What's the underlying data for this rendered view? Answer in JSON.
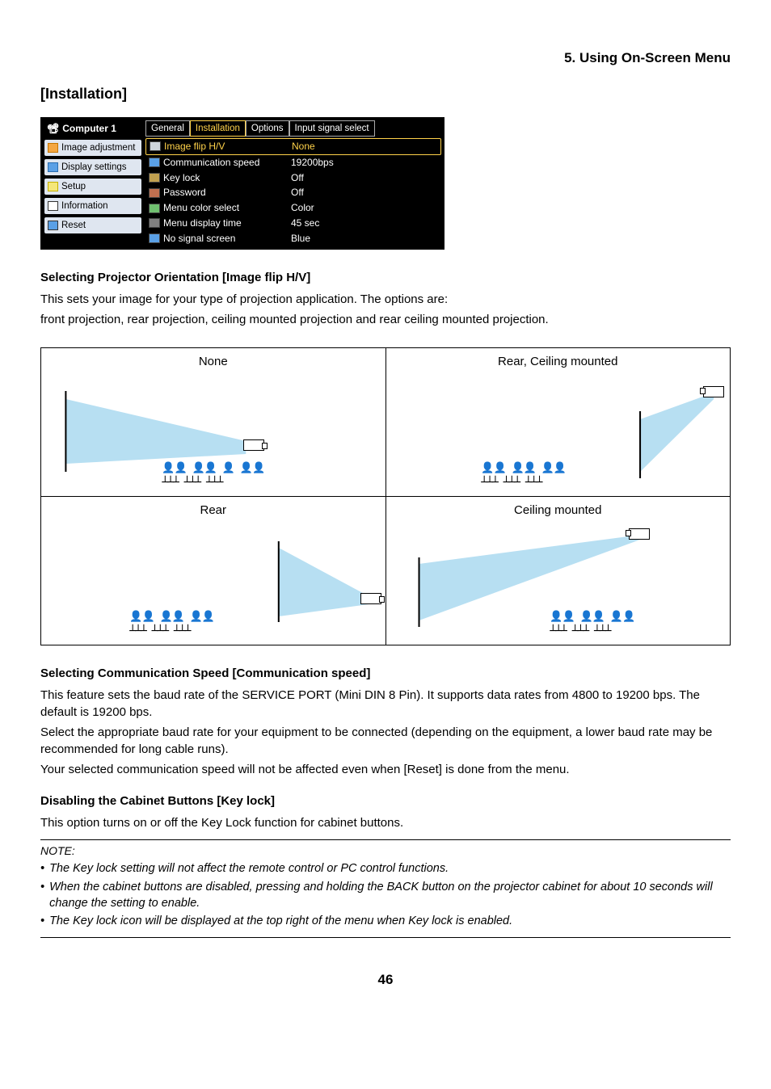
{
  "chapter": "5. Using On-Screen Menu",
  "sectionTitle": "[Installation]",
  "osd": {
    "source": "Computer 1",
    "nav": [
      {
        "label": "Image adjustment",
        "iconClass": "orange"
      },
      {
        "label": "Display settings",
        "iconClass": "blue"
      },
      {
        "label": "Setup",
        "iconClass": "yellow"
      },
      {
        "label": "Information",
        "iconClass": "white"
      },
      {
        "label": "Reset",
        "iconClass": "reset"
      }
    ],
    "tabs": [
      "General",
      "Installation",
      "Options",
      "Input signal select"
    ],
    "activeTab": 1,
    "rows": [
      {
        "label": "Image flip H/V",
        "value": "None",
        "icon": "hv",
        "active": true
      },
      {
        "label": "Communication speed",
        "value": "19200bps",
        "icon": "blue"
      },
      {
        "label": "Key lock",
        "value": "Off",
        "icon": "key"
      },
      {
        "label": "Password",
        "value": "Off",
        "icon": "pw"
      },
      {
        "label": "Menu color select",
        "value": "Color",
        "icon": "color"
      },
      {
        "label": "Menu display time",
        "value": "45 sec",
        "icon": "time"
      },
      {
        "label": "No signal screen",
        "value": "Blue",
        "icon": "blue"
      }
    ]
  },
  "sub1": {
    "heading": "Selecting Projector Orientation [Image flip H/V]",
    "p1": "This sets your image for your type of projection application. The options are:",
    "p2": "front projection, rear projection, ceiling mounted projection and rear ceiling mounted projection."
  },
  "orient": {
    "c1": "None",
    "c2": "Rear, Ceiling mounted",
    "c3": "Rear",
    "c4": "Ceiling mounted"
  },
  "sub2": {
    "heading": "Selecting Communication Speed [Communication speed]",
    "p1": "This feature sets the baud rate of the SERVICE PORT (Mini DIN 8 Pin). It supports data rates from 4800 to 19200 bps. The default is 19200 bps.",
    "p2": "Select the appropriate baud rate for your equipment to be connected (depending on the equipment, a lower baud rate may be recommended for long cable runs).",
    "p3": "Your selected communication speed will not be affected even when [Reset] is done from the menu."
  },
  "sub3": {
    "heading": "Disabling the Cabinet Buttons [Key lock]",
    "p1": "This option turns on or off the Key Lock function for cabinet buttons."
  },
  "noteLabel": "NOTE:",
  "notes": [
    "The Key lock setting will not affect the remote control or PC control functions.",
    "When the cabinet buttons are disabled, pressing and holding the BACK button on the projector cabinet for about 10 seconds will change the setting to enable.",
    "The Key lock icon will be displayed at the top right of the menu when Key lock is enabled."
  ],
  "pageNumber": "46"
}
